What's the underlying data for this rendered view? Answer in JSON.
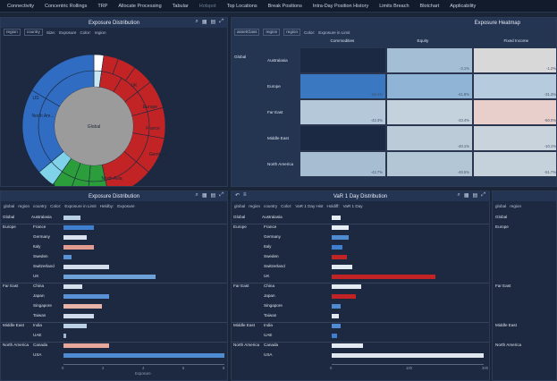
{
  "nav": [
    "Connectivity",
    "Concentric Rollings",
    "TRP",
    "Allocate Processing",
    "Tabular",
    "Hotspot",
    "Top Locations",
    "Break Positions",
    "Intra-Day Position History",
    "Limits Breach",
    "Blotchart",
    "Applicability"
  ],
  "colors": {
    "bg": "#1b2538",
    "panel": "#1d2940",
    "header": "#243453",
    "blue": "#2f6cc2",
    "red": "#c22425",
    "green": "#2b9d3a",
    "lightblue": "#7fd2e8",
    "gray": "#9b9b9b",
    "salmon": "#e29b8f"
  },
  "panels": {
    "sunburst": {
      "title": "Exposure Distribution",
      "toolbar": [
        "region",
        "country",
        "Size:",
        "Exposure",
        "Color:",
        "region"
      ],
      "center_label": "Global",
      "labels": {
        "north_america": "North Am...",
        "us": "US",
        "north_asia": "North Asia",
        "japan": "Japan",
        "fareast": "Far East",
        "china": "China",
        "europe": "Europe",
        "france": "France",
        "germany": "Germany",
        "uk": "UK"
      }
    },
    "heatmap": {
      "title": "Exposure Heatmap",
      "toolbar": [
        "assetClass",
        "region",
        "region",
        "Color:",
        "Exposure in Limit"
      ],
      "columns": [
        "Commodities",
        "Equity",
        "Fixed Income"
      ],
      "global_label": "Global",
      "rows": [
        "Australasia",
        "Europe",
        "Far East",
        "Middle East",
        "North America"
      ],
      "values": [
        [
          "",
          "-2.1%",
          "-1.2%"
        ],
        [
          "-59.4%",
          "-41.8%",
          "-31.3%"
        ],
        [
          "-42.3%",
          "-33.4%",
          "-60.0%"
        ],
        [
          "",
          "-40.1%",
          "-10.1%"
        ],
        [
          "-42.7%",
          "-46.5%",
          "-51.7%"
        ]
      ],
      "cell_colors": [
        [
          "#1c2942",
          "#a4bfd5",
          "#d8d8d8"
        ],
        [
          "#3a78c2",
          "#8fb4d5",
          "#b6cbde"
        ],
        [
          "#b4c8da",
          "#c4d2dd",
          "#e8cfcb"
        ],
        [
          "#1c2942",
          "#bccbd8",
          "#c9d3dc"
        ],
        [
          "#a7bed2",
          "#b3c6d6",
          "#c6d2db"
        ]
      ]
    },
    "bars_left": {
      "title": "Exposure Distribution",
      "toolbar": [
        "global",
        "region",
        "country",
        "Color:",
        "Exposure in Limit",
        "Heldby:",
        "Exposure"
      ],
      "groups": [
        {
          "label": "Global",
          "region": "Australasia",
          "country": "Australia"
        },
        {
          "label": "Europe",
          "country": "France"
        },
        {
          "country": "Germany"
        },
        {
          "country": "Italy"
        },
        {
          "country": "Sweden"
        },
        {
          "country": "Switzerland"
        },
        {
          "country": "UK"
        },
        {
          "label": "Far East",
          "country": "China"
        },
        {
          "country": "Japan"
        },
        {
          "country": "Singapore"
        },
        {
          "country": "Taiwan"
        },
        {
          "label": "Middle East",
          "country": "India"
        },
        {
          "country": "UAE"
        },
        {
          "label": "North America",
          "country": "Canada"
        },
        {
          "country": "USA"
        }
      ],
      "values": [
        1.1,
        2.0,
        1.5,
        2.0,
        0.5,
        3.0,
        6.0,
        1.2,
        3.0,
        2.5,
        2.0,
        1.5,
        0.2,
        3.0,
        10.5
      ],
      "colors": [
        "#b9cfe3",
        "#3f7fcf",
        "#d9e2ee",
        "#e29b8f",
        "#5a92d8",
        "#d2dcea",
        "#6ea1d8",
        "#d6e0ec",
        "#5a92d8",
        "#e7b3a8",
        "#cfdbea",
        "#bcd0e5",
        "#9fb6d5",
        "#e7a79a",
        "#4f8bd1"
      ],
      "axis": [
        "0",
        "2",
        "4",
        "6",
        "8"
      ],
      "xlabel": "Exposure"
    },
    "bars_mid": {
      "title": "VaR 1 Day Distribution",
      "toolbar": [
        "global",
        "region",
        "country",
        "Color:",
        "VaR 1 Day Hist",
        "Holdiff:",
        "VaR 1 Day"
      ],
      "values": [
        5,
        10,
        10,
        6,
        9,
        12,
        60,
        17,
        14,
        5,
        4,
        5,
        3,
        18,
        88
      ],
      "colors": [
        "#e5ecf4",
        "#e8eef5",
        "#4f8bd1",
        "#3f7fcf",
        "#c22425",
        "#e3e9f1",
        "#c22425",
        "#e5ebf3",
        "#c22425",
        "#4f8bd1",
        "#e0e7f0",
        "#4f8bd1",
        "#3f7fcf",
        "#e4eaf2",
        "#dfe6ee"
      ],
      "axis": [
        "0",
        "100",
        "200"
      ]
    },
    "bars_right": {
      "toolbar": [
        "global",
        "region"
      ],
      "labels": [
        "Global",
        "Europe",
        "Far East",
        "Middle East",
        "North America"
      ]
    }
  }
}
